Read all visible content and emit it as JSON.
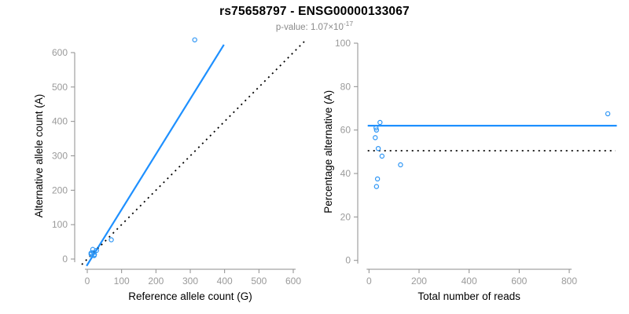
{
  "header": {
    "title": "rs75658797 - ENSG00000133067",
    "subtitle_prefix": "p-value: 1.07×10",
    "subtitle_exponent": "-17"
  },
  "colors": {
    "title": "#000000",
    "subtitle": "#8A8A8A",
    "axis": "#8E8E8E",
    "tick_label": "#9A9A9A",
    "axis_title": "#000000",
    "line_blue": "#1E90FF",
    "point_blue": "#2E96F5",
    "dotted_black": "#000000"
  },
  "chart_data": [
    {
      "type": "scatter",
      "id": "left",
      "title": "",
      "xlabel": "Reference allele count (G)",
      "ylabel": "Alternative allele count (A)",
      "xlim": [
        0,
        600
      ],
      "ylim": [
        0,
        600
      ],
      "xticks": [
        0,
        100,
        200,
        300,
        400,
        500,
        600
      ],
      "yticks": [
        0,
        100,
        200,
        300,
        400,
        500,
        600
      ],
      "grid": false,
      "legend": "none",
      "point_color": "#2E96F5",
      "points": [
        [
          16,
          28
        ],
        [
          11,
          17
        ],
        [
          12,
          18
        ],
        [
          11,
          14
        ],
        [
          18,
          19
        ],
        [
          27,
          25
        ],
        [
          21,
          13
        ],
        [
          20,
          10
        ],
        [
          70,
          56
        ],
        [
          313,
          637
        ]
      ],
      "lines": [
        {
          "name": "left-regression-line",
          "style": "solid",
          "color": "#1E90FF",
          "x1": -2,
          "y1": -20,
          "x2": 398,
          "y2": 623
        },
        {
          "name": "left-identity-line",
          "style": "dotted",
          "color": "#000000",
          "x1": -16,
          "y1": -16,
          "x2": 632,
          "y2": 632
        }
      ]
    },
    {
      "type": "scatter",
      "id": "right",
      "title": "",
      "xlabel": "Total number of reads",
      "ylabel": "Percentage alternative (A)",
      "xlim": [
        0,
        800
      ],
      "ylim": [
        0,
        100
      ],
      "xticks": [
        0,
        200,
        400,
        600,
        800
      ],
      "yticks": [
        0,
        20,
        40,
        60,
        80,
        100
      ],
      "grid": false,
      "legend": "none",
      "point_color": "#2E96F5",
      "points": [
        [
          44,
          63.5
        ],
        [
          28,
          61
        ],
        [
          30,
          60
        ],
        [
          25,
          56.5
        ],
        [
          37,
          51.5
        ],
        [
          52,
          48
        ],
        [
          126,
          44
        ],
        [
          34,
          37.5
        ],
        [
          30,
          34
        ],
        [
          954,
          67.5
        ]
      ],
      "lines": [
        {
          "name": "right-mean-percentage-line",
          "style": "solid",
          "color": "#1E90FF",
          "x1": -5,
          "y1": 62,
          "x2": 990,
          "y2": 62
        },
        {
          "name": "right-expected-50-line",
          "style": "dotted",
          "color": "#000000",
          "x1": -5,
          "y1": 50.5,
          "x2": 985,
          "y2": 50.5
        }
      ]
    }
  ]
}
